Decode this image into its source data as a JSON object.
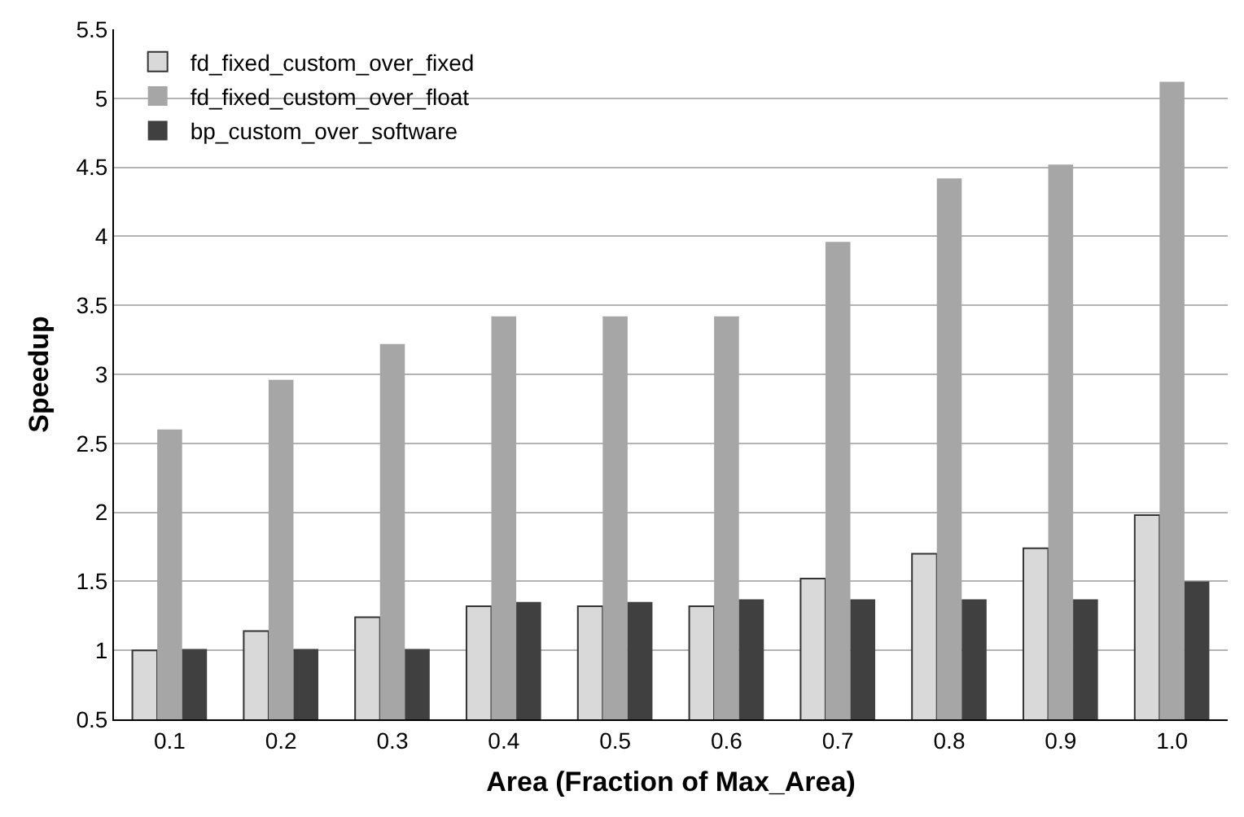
{
  "chart_data": {
    "type": "bar",
    "xlabel": "Area (Fraction of Max_Area)",
    "ylabel": "Speedup",
    "categories": [
      "0.1",
      "0.2",
      "0.3",
      "0.4",
      "0.5",
      "0.6",
      "0.7",
      "0.8",
      "0.9",
      "1.0"
    ],
    "series": [
      {
        "name": "fd_fixed_custom_over_fixed",
        "color": "#d9d9d9",
        "values": [
          1.0,
          1.14,
          1.24,
          1.32,
          1.32,
          1.32,
          1.52,
          1.7,
          1.74,
          1.98
        ]
      },
      {
        "name": "fd_fixed_custom_over_float",
        "color": "#a6a6a6",
        "values": [
          2.6,
          2.96,
          3.22,
          3.42,
          3.42,
          3.42,
          3.96,
          4.42,
          4.52,
          5.12
        ]
      },
      {
        "name": "bp_custom_over_software",
        "color": "#404040",
        "values": [
          1.01,
          1.01,
          1.01,
          1.35,
          1.35,
          1.37,
          1.37,
          1.37,
          1.37,
          1.5
        ]
      }
    ],
    "ylim": [
      0.5,
      5.5
    ],
    "yticks": [
      0.5,
      1,
      1.5,
      2,
      2.5,
      3,
      3.5,
      4,
      4.5,
      5,
      5.5
    ],
    "grid": "y",
    "legend": "top left"
  }
}
